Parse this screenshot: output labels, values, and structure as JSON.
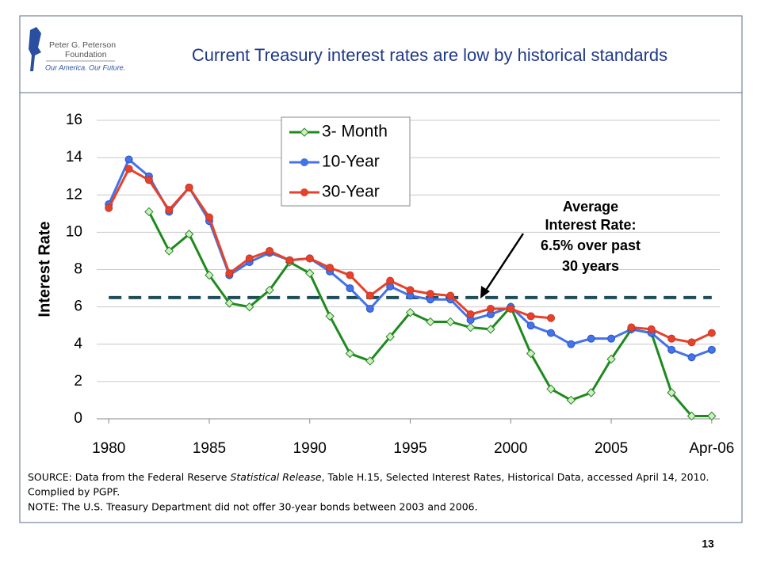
{
  "header": {
    "logo_name": [
      "Peter G. Peterson",
      "Foundation"
    ],
    "logo_tagline": "Our America. Our Future.",
    "title": "Current Treasury interest rates are low by historical standards"
  },
  "chart_data": {
    "type": "line",
    "y_label": "Interest Rate",
    "x": [
      1980,
      1981,
      1982,
      1983,
      1984,
      1985,
      1986,
      1987,
      1988,
      1989,
      1990,
      1991,
      1992,
      1993,
      1994,
      1995,
      1996,
      1997,
      1998,
      1999,
      2000,
      2001,
      2002,
      2003,
      2004,
      2005,
      2006,
      2007,
      2008,
      2009,
      2010
    ],
    "series": [
      {
        "name": "3- Month",
        "color": "#1e8a1e",
        "values": [
          null,
          null,
          11.1,
          9.0,
          9.9,
          7.7,
          6.2,
          6.0,
          6.9,
          8.4,
          7.8,
          5.5,
          3.5,
          3.1,
          4.4,
          5.7,
          5.2,
          5.2,
          4.9,
          4.8,
          6.0,
          3.5,
          1.6,
          1.0,
          1.4,
          3.2,
          4.8,
          4.6,
          1.4,
          0.15,
          0.15
        ]
      },
      {
        "name": "10-Year",
        "color": "#4472e8",
        "values": [
          11.5,
          13.9,
          13.0,
          11.1,
          12.4,
          10.6,
          7.7,
          8.4,
          8.9,
          8.5,
          8.6,
          7.9,
          7.0,
          5.9,
          7.1,
          6.6,
          6.4,
          6.4,
          5.3,
          5.6,
          6.0,
          5.0,
          4.6,
          4.0,
          4.3,
          4.3,
          4.8,
          4.6,
          3.7,
          3.3,
          3.7
        ]
      },
      {
        "name": "30-Year",
        "color": "#e8412a",
        "values": [
          11.3,
          13.4,
          12.8,
          11.2,
          12.4,
          10.8,
          7.8,
          8.6,
          9.0,
          8.5,
          8.6,
          8.1,
          7.7,
          6.6,
          7.4,
          6.9,
          6.7,
          6.6,
          5.6,
          5.9,
          5.9,
          5.5,
          5.4,
          null,
          null,
          null,
          4.9,
          4.8,
          4.3,
          4.1,
          4.6
        ]
      }
    ],
    "average": 6.5,
    "average_color": "#1f4e5a",
    "annotation": [
      "Average",
      "Interest Rate:",
      "6.5% over past",
      "30 years"
    ],
    "xlim": [
      1979.4,
      2010.4
    ],
    "xticks": [
      1980,
      1985,
      1990,
      1995,
      2000,
      2005,
      {
        "value": 2010,
        "label": "Apr-06"
      }
    ],
    "ylim": [
      0,
      16
    ],
    "yticks": [
      0,
      2,
      4,
      6,
      8,
      10,
      12,
      14,
      16
    ],
    "grid": true
  },
  "notes": {
    "source": [
      "SOURCE: Data from the Federal Reserve ",
      "Statistical Release",
      ", Table H.15, Selected Interest Rates, Historical Data, accessed April 14, 2010."
    ],
    "source_2": "Complied by PGPF.",
    "note": "NOTE: The U.S. Treasury Department did not offer 30-year bonds between 2003 and 2006."
  },
  "page_number": "13"
}
